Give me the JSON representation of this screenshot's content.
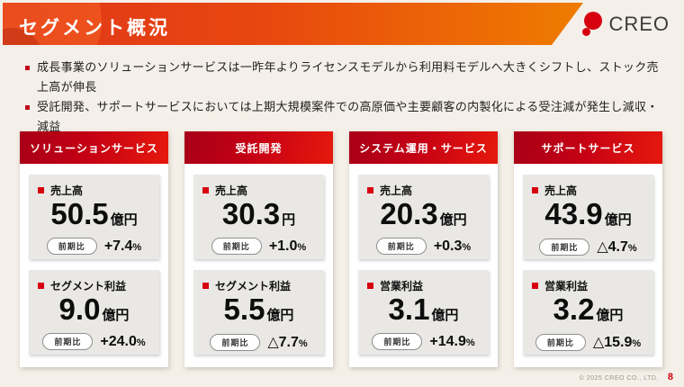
{
  "header": {
    "title": "セグメント概況",
    "logo_text": "CREO"
  },
  "bullets": [
    "成長事業のソリューションサービスは一昨年よりライセンスモデルから利用料モデルへ大きくシフトし、ストック売上高が伸長",
    "受託開発、サポートサービスにおいては上期大規模案件での高原価や主要顧客の内製化による受注減が発生し減収・減益"
  ],
  "comparison_label": "前期比",
  "segments": [
    {
      "name": "ソリューションサービス",
      "metrics": [
        {
          "label": "売上高",
          "value": "50.5",
          "unit": "億円",
          "change": "+7.4",
          "pct": "%"
        },
        {
          "label": "セグメント利益",
          "value": "9.0",
          "unit": "億円",
          "change": "+24.0",
          "pct": "%"
        }
      ]
    },
    {
      "name": "受託開発",
      "metrics": [
        {
          "label": "売上高",
          "value": "30.3",
          "unit": "円",
          "change": "+1.0",
          "pct": "%"
        },
        {
          "label": "セグメント利益",
          "value": "5.5",
          "unit": "億円",
          "change": "△7.7",
          "pct": "%"
        }
      ]
    },
    {
      "name": "システム運用・サービス",
      "metrics": [
        {
          "label": "売上高",
          "value": "20.3",
          "unit": "億円",
          "change": "+0.3",
          "pct": "%"
        },
        {
          "label": "営業利益",
          "value": "3.1",
          "unit": "億円",
          "change": "+14.9",
          "pct": "%"
        }
      ]
    },
    {
      "name": "サポートサービス",
      "metrics": [
        {
          "label": "売上高",
          "value": "43.9",
          "unit": "億円",
          "change": "△4.7",
          "pct": "%"
        },
        {
          "label": "営業利益",
          "value": "3.2",
          "unit": "億円",
          "change": "△15.9",
          "pct": "%"
        }
      ]
    }
  ],
  "footer": {
    "copyright": "© 2025 CREO CO., LTD.",
    "page_number": "8"
  },
  "colors": {
    "accent_red": "#d7000f",
    "banner_gradient_start": "#e0361b",
    "banner_gradient_end": "#ef7c00",
    "card_header_start": "#a80017",
    "card_header_end": "#e6190d",
    "background": "#f4f0e9"
  }
}
